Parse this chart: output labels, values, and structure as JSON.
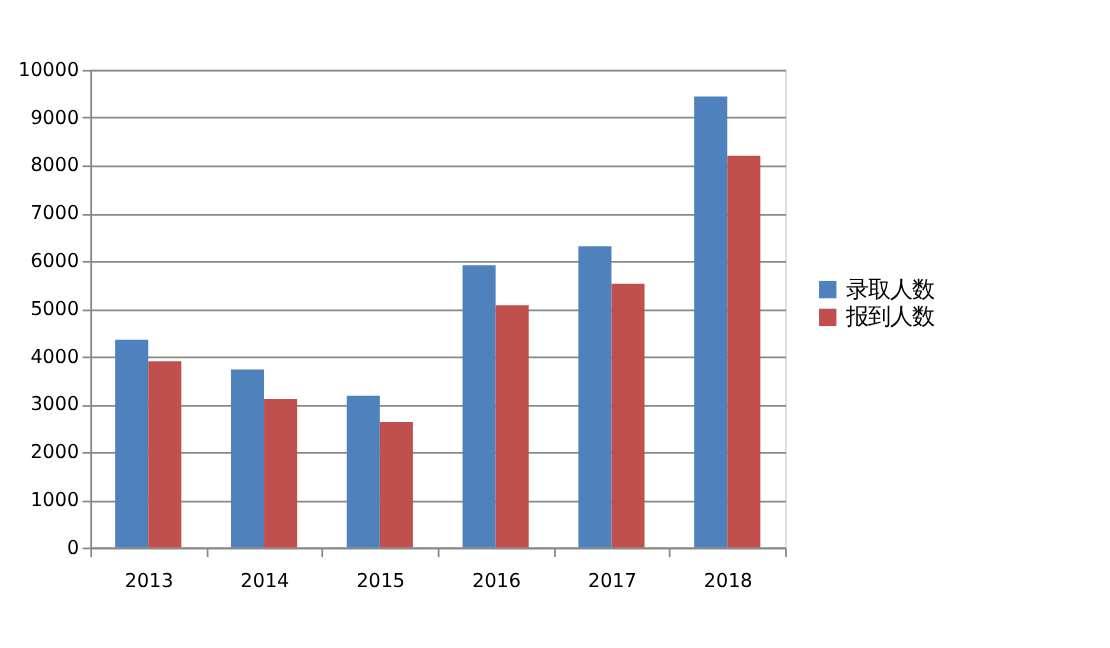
{
  "chart_data": {
    "type": "bar",
    "categories": [
      "2013",
      "2014",
      "2015",
      "2016",
      "2017",
      "2018"
    ],
    "series": [
      {
        "name": "录取人数",
        "color": "#4f81bd",
        "values": [
          4350,
          3730,
          3180,
          5910,
          6310,
          9440
        ]
      },
      {
        "name": "报到人数",
        "color": "#c0504d",
        "values": [
          3900,
          3110,
          2630,
          5070,
          5520,
          8200
        ]
      }
    ],
    "ylim": [
      0,
      10000
    ],
    "yticks": [
      0,
      1000,
      2000,
      3000,
      4000,
      5000,
      6000,
      7000,
      8000,
      9000,
      10000
    ],
    "grid": "y",
    "legend": "right"
  }
}
